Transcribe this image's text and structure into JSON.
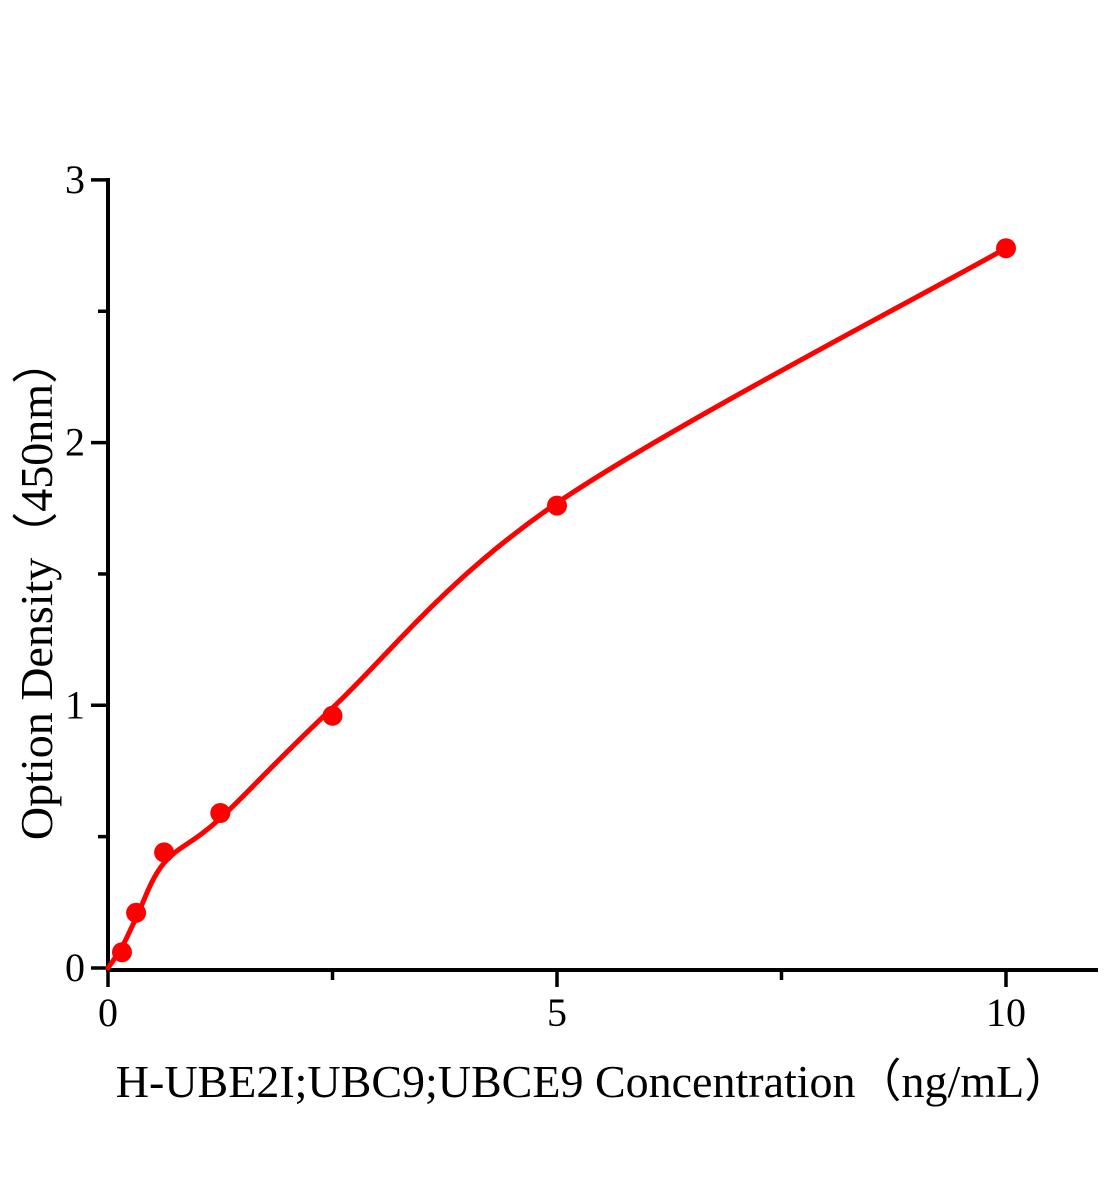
{
  "chart_data": {
    "type": "scatter",
    "title": "",
    "xlabel": "H-UBE2I;UBC9;UBCE9 Concentration（ng/mL）",
    "ylabel": "Option Density（450nm）",
    "xlim": [
      0,
      11
    ],
    "ylim": [
      0,
      3
    ],
    "x_ticks": [
      0,
      5,
      10
    ],
    "x_tick_labels": [
      "0",
      "5",
      "10"
    ],
    "x_minor_ticks": [
      2.5,
      7.5
    ],
    "y_ticks": [
      0,
      1,
      2,
      3
    ],
    "y_tick_labels": [
      "0",
      "1",
      "2",
      "3"
    ],
    "y_minor_ticks": [
      0.5,
      1.5,
      2.5
    ],
    "grid": "off",
    "legend": "none",
    "series": [
      {
        "name": "standard-points",
        "style": "scatter",
        "points": [
          [
            0.156,
            0.06
          ],
          [
            0.313,
            0.21
          ],
          [
            0.625,
            0.44
          ],
          [
            1.25,
            0.59
          ],
          [
            2.5,
            0.96
          ],
          [
            5,
            1.76
          ],
          [
            10,
            2.74
          ]
        ]
      },
      {
        "name": "fit-curve",
        "style": "line",
        "points": [
          [
            0,
            0
          ],
          [
            0.156,
            0.08
          ],
          [
            0.313,
            0.19
          ],
          [
            0.625,
            0.4
          ],
          [
            1.25,
            0.57
          ],
          [
            2.5,
            0.99
          ],
          [
            5,
            1.77
          ],
          [
            10,
            2.74
          ]
        ]
      }
    ],
    "colors": {
      "point_color": "#ff0000",
      "curve_color": "#ff0000",
      "axis_color": "#000000",
      "background": "#ffffff"
    }
  }
}
